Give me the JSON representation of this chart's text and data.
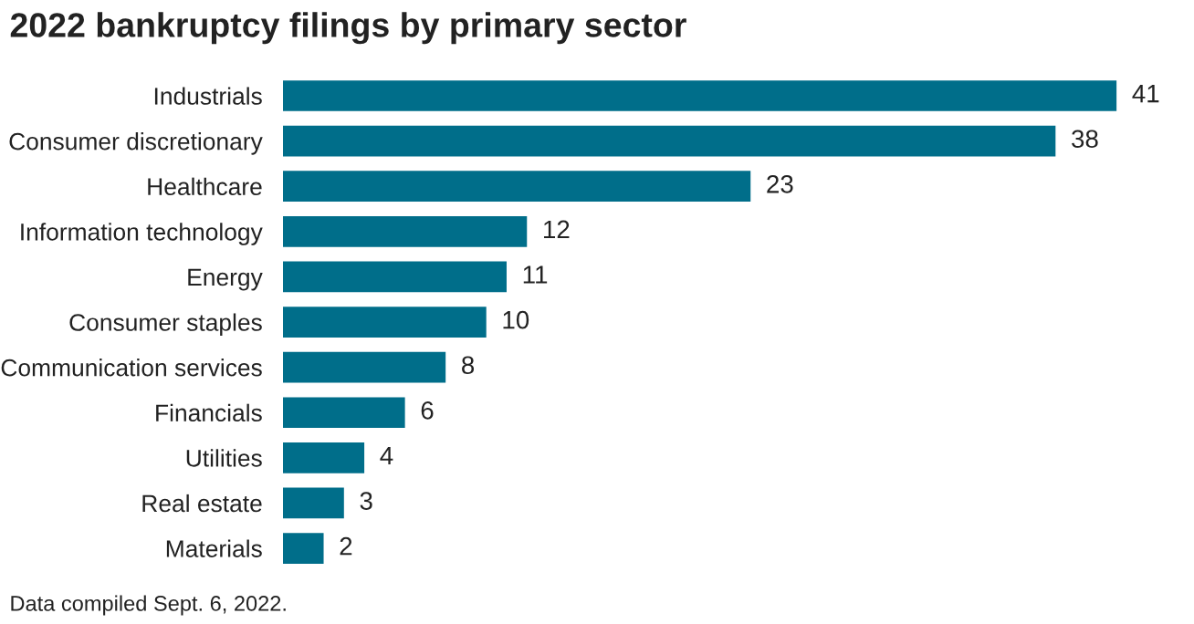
{
  "chart_data": {
    "type": "bar",
    "orientation": "horizontal",
    "title": "2022 bankruptcy filings by primary sector",
    "categories": [
      "Industrials",
      "Consumer discretionary",
      "Healthcare",
      "Information technology",
      "Energy",
      "Consumer staples",
      "Communication services",
      "Financials",
      "Utilities",
      "Real estate",
      "Materials"
    ],
    "values": [
      41,
      38,
      23,
      12,
      11,
      10,
      8,
      6,
      4,
      3,
      2
    ],
    "color": "#006e8a",
    "data_labels": true,
    "grid": false,
    "legend": false,
    "annotations": [
      "Data compiled Sept. 6, 2022."
    ]
  }
}
